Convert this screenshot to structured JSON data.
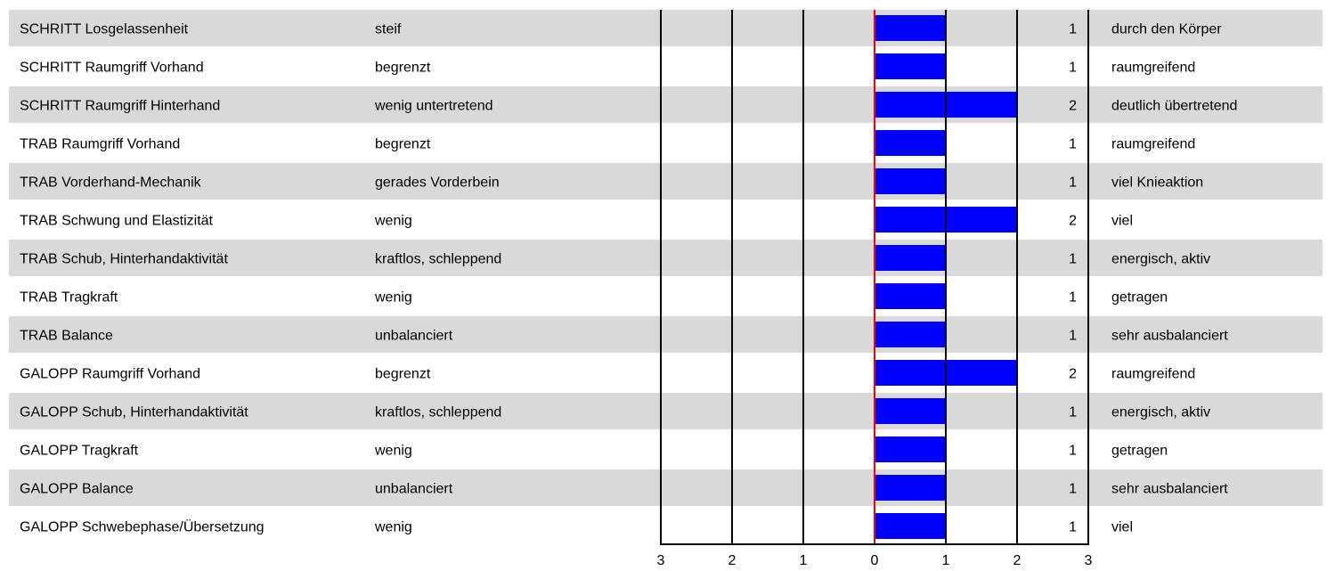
{
  "chart_data": {
    "type": "bar",
    "title": "",
    "xlim": [
      -3,
      3
    ],
    "ticks": [
      "3",
      "2",
      "1",
      "0",
      "1",
      "2",
      "3"
    ],
    "colors": {
      "bar": "#0000ff",
      "zero_line": "#ff0000",
      "row_band": "#d9d9d9",
      "gridline": "#000000"
    },
    "rows": [
      {
        "label": "SCHRITT Losgelassenheit",
        "low": "steif",
        "value": 1,
        "value_text": "1",
        "high": "durch den Körper"
      },
      {
        "label": "SCHRITT Raumgriff Vorhand",
        "low": "begrenzt",
        "value": 1,
        "value_text": "1",
        "high": "raumgreifend"
      },
      {
        "label": "SCHRITT Raumgriff Hinterhand",
        "low": "wenig untertretend",
        "value": 2,
        "value_text": "2",
        "high": "deutlich übertretend"
      },
      {
        "label": "TRAB Raumgriff Vorhand",
        "low": "begrenzt",
        "value": 1,
        "value_text": "1",
        "high": "raumgreifend"
      },
      {
        "label": "TRAB Vorderhand-Mechanik",
        "low": "gerades Vorderbein",
        "value": 1,
        "value_text": "1",
        "high": "viel Knieaktion"
      },
      {
        "label": "TRAB Schwung und Elastizität",
        "low": "wenig",
        "value": 2,
        "value_text": "2",
        "high": "viel"
      },
      {
        "label": "TRAB Schub, Hinterhandaktivität",
        "low": "kraftlos, schleppend",
        "value": 1,
        "value_text": "1",
        "high": "energisch, aktiv"
      },
      {
        "label": "TRAB Tragkraft",
        "low": "wenig",
        "value": 1,
        "value_text": "1",
        "high": "getragen"
      },
      {
        "label": "TRAB Balance",
        "low": "unbalanciert",
        "value": 1,
        "value_text": "1",
        "high": "sehr ausbalanciert"
      },
      {
        "label": "GALOPP Raumgriff Vorhand",
        "low": "begrenzt",
        "value": 2,
        "value_text": "2",
        "high": "raumgreifend"
      },
      {
        "label": "GALOPP Schub, Hinterhandaktivität",
        "low": "kraftlos, schleppend",
        "value": 1,
        "value_text": "1",
        "high": "energisch, aktiv"
      },
      {
        "label": "GALOPP Tragkraft",
        "low": "wenig",
        "value": 1,
        "value_text": "1",
        "high": "getragen"
      },
      {
        "label": "GALOPP Balance",
        "low": "unbalanciert",
        "value": 1,
        "value_text": "1",
        "high": "sehr ausbalanciert"
      },
      {
        "label": "GALOPP Schwebephase/Übersetzung",
        "low": "wenig",
        "value": 1,
        "value_text": "1",
        "high": "viel"
      }
    ]
  }
}
